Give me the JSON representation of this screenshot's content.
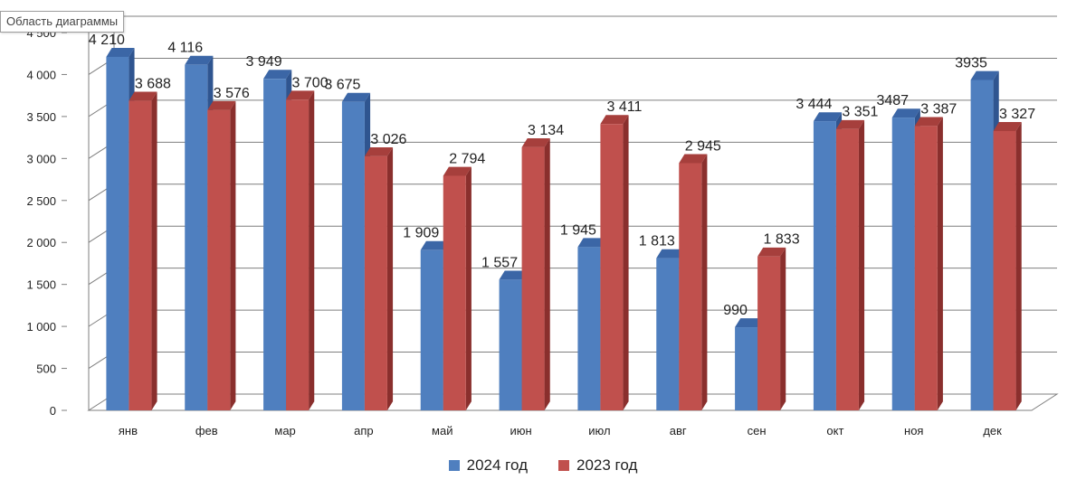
{
  "tooltip": {
    "label": "Область диаграммы"
  },
  "colors": {
    "series_2024_front": "#4f7fbf",
    "series_2024_side": "#2f5590",
    "series_2024_top": "#3b66a6",
    "series_2023_front": "#c0504d",
    "series_2023_side": "#8a2f2d",
    "series_2023_top": "#a63f3c",
    "gridline": "#7f7f7f",
    "text": "#222222"
  },
  "chart_data": {
    "type": "bar",
    "categories": [
      "янв",
      "фев",
      "мар",
      "апр",
      "май",
      "июн",
      "июл",
      "авг",
      "сен",
      "окт",
      "ноя",
      "дек"
    ],
    "series": [
      {
        "name": "2024 год",
        "values": [
          4210,
          4116,
          3949,
          3675,
          1909,
          1557,
          1945,
          1813,
          990,
          3444,
          3487,
          3935
        ],
        "labels": [
          "4 210",
          "4 116",
          "3 949",
          "3 675",
          "1 909",
          "1 557",
          "1 945",
          "1 813",
          "990",
          "3 444",
          "3487",
          "3935"
        ]
      },
      {
        "name": "2023 год",
        "values": [
          3688,
          3576,
          3700,
          3026,
          2794,
          3134,
          3411,
          2945,
          1833,
          3351,
          3387,
          3327
        ],
        "labels": [
          "3 688",
          "3 576",
          "3 700",
          "3 026",
          "2 794",
          "3 134",
          "3 411",
          "2 945",
          "1 833",
          "3 351",
          "3 387",
          "3 327"
        ]
      }
    ],
    "yticks": [
      "0",
      "500",
      "1 000",
      "1 500",
      "2 000",
      "2 500",
      "3 000",
      "3 500",
      "4 000",
      "4 500"
    ],
    "ylim": [
      0,
      4500
    ],
    "grid": true,
    "legend_position": "bottom",
    "title": "",
    "xlabel": "",
    "ylabel": ""
  }
}
